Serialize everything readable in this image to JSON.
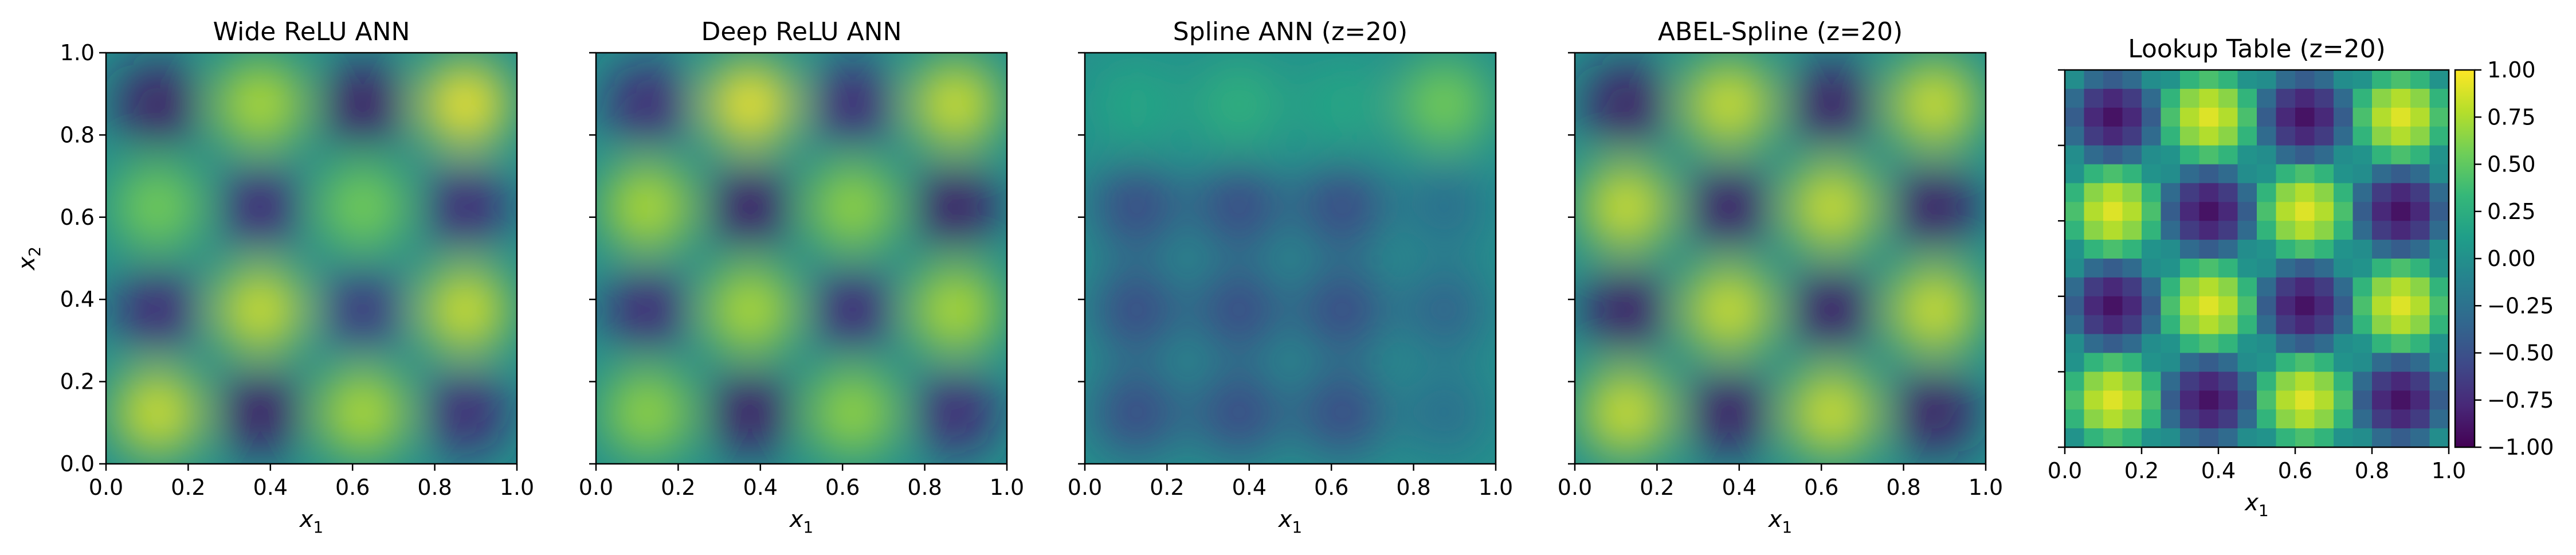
{
  "chart_data": [
    {
      "type": "heatmap",
      "title": "Wide ReLU ANN",
      "xlabel": "x",
      "xlabel_sub": "1",
      "ylabel": "x",
      "ylabel_sub": "2",
      "xlim": [
        0,
        1
      ],
      "ylim": [
        0,
        1
      ],
      "x_ticks": [
        "0.0",
        "0.2",
        "0.4",
        "0.6",
        "0.8",
        "1.0"
      ],
      "y_ticks": [
        "0.0",
        "0.2",
        "0.4",
        "0.6",
        "0.8",
        "1.0"
      ],
      "value_grid_top_to_bottom": [
        [
          -0.9,
          0.8,
          -0.9,
          1.0
        ],
        [
          0.6,
          -0.8,
          0.6,
          -0.8
        ],
        [
          -0.8,
          0.9,
          -0.7,
          0.9
        ],
        [
          0.9,
          -0.9,
          0.8,
          -0.8
        ]
      ],
      "rendering": "smooth"
    },
    {
      "type": "heatmap",
      "title": "Deep ReLU ANN",
      "xlabel": "x",
      "xlabel_sub": "1",
      "xlim": [
        0,
        1
      ],
      "ylim": [
        0,
        1
      ],
      "x_ticks": [
        "0.0",
        "0.2",
        "0.4",
        "0.6",
        "0.8",
        "1.0"
      ],
      "value_grid_top_to_bottom": [
        [
          -0.8,
          1.0,
          -0.8,
          0.9
        ],
        [
          0.8,
          -0.9,
          0.7,
          -0.9
        ],
        [
          -0.8,
          0.8,
          -0.8,
          0.8
        ],
        [
          0.7,
          -0.9,
          0.7,
          -0.8
        ]
      ],
      "rendering": "smooth"
    },
    {
      "type": "heatmap",
      "title": "Spline ANN (z=20)",
      "xlabel": "x",
      "xlabel_sub": "1",
      "xlim": [
        0,
        1
      ],
      "ylim": [
        0,
        1
      ],
      "x_ticks": [
        "0.0",
        "0.2",
        "0.4",
        "0.6",
        "0.8",
        "1.0"
      ],
      "value_grid_top_to_bottom": [
        [
          0.2,
          0.3,
          0.2,
          0.6
        ],
        [
          -0.6,
          -0.6,
          -0.6,
          -0.3
        ],
        [
          -0.6,
          -0.6,
          -0.6,
          -0.4
        ],
        [
          -0.6,
          -0.6,
          -0.6,
          -0.3
        ]
      ],
      "rendering": "smooth"
    },
    {
      "type": "heatmap",
      "title": "ABEL-Spline (z=20)",
      "xlabel": "x",
      "xlabel_sub": "1",
      "xlim": [
        0,
        1
      ],
      "ylim": [
        0,
        1
      ],
      "x_ticks": [
        "0.0",
        "0.2",
        "0.4",
        "0.6",
        "0.8",
        "1.0"
      ],
      "value_grid_top_to_bottom": [
        [
          -0.9,
          0.9,
          -0.9,
          0.9
        ],
        [
          0.9,
          -0.9,
          0.9,
          -0.9
        ],
        [
          -0.9,
          0.9,
          -0.9,
          0.9
        ],
        [
          0.9,
          -0.9,
          0.9,
          -0.9
        ]
      ],
      "rendering": "smooth"
    },
    {
      "type": "heatmap",
      "title": "Lookup Table (z=20)",
      "xlabel": "x",
      "xlabel_sub": "1",
      "xlim": [
        0,
        1
      ],
      "ylim": [
        0,
        1
      ],
      "x_ticks": [
        "0.0",
        "0.2",
        "0.4",
        "0.6",
        "0.8",
        "1.0"
      ],
      "value_grid_top_to_bottom": [
        [
          -0.9,
          0.9,
          -0.9,
          0.9
        ],
        [
          0.9,
          -0.9,
          0.9,
          -0.9
        ],
        [
          -0.9,
          0.9,
          -0.9,
          0.9
        ],
        [
          0.9,
          -0.9,
          0.9,
          -0.9
        ]
      ],
      "rendering": "blocky",
      "blocks_per_axis": 20,
      "colorbar": {
        "vmin": -1.0,
        "vmax": 1.0,
        "colormap": "viridis",
        "ticks": [
          "1.00",
          "0.75",
          "0.50",
          "0.25",
          "0.00",
          "−0.25",
          "−0.50",
          "−0.75",
          "−1.00"
        ]
      }
    }
  ]
}
